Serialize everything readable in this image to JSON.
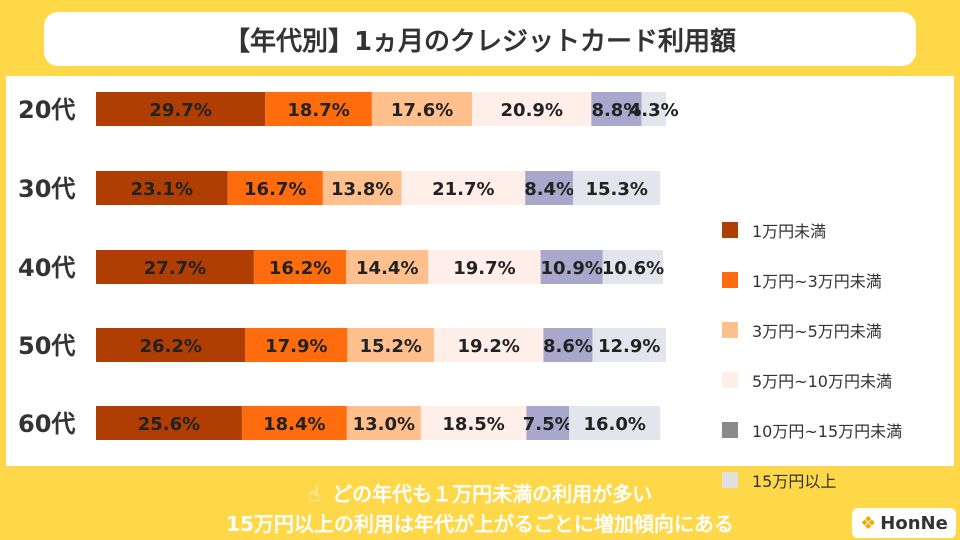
{
  "header": {
    "title": "【年代別】1ヵ月のクレジットカード利用額"
  },
  "chart_data": {
    "type": "bar",
    "orientation": "horizontal",
    "stacked": true,
    "categories": [
      "20代",
      "30代",
      "40代",
      "50代",
      "60代"
    ],
    "series": [
      {
        "name": "1万円未満",
        "values": [
          29.7,
          23.1,
          27.7,
          26.2,
          25.6
        ]
      },
      {
        "name": "1万円~3万円未満",
        "values": [
          18.7,
          16.7,
          16.2,
          17.9,
          18.4
        ]
      },
      {
        "name": "3万円~5万円未満",
        "values": [
          17.6,
          13.8,
          14.4,
          15.2,
          13.0
        ]
      },
      {
        "name": "5万円~10万円未満",
        "values": [
          20.9,
          21.7,
          19.7,
          19.2,
          18.5
        ]
      },
      {
        "name": "10万円~15万円未満",
        "values": [
          8.8,
          8.4,
          10.9,
          8.6,
          7.5
        ]
      },
      {
        "name": "15万円以上",
        "values": [
          4.3,
          15.3,
          10.6,
          12.9,
          16.0
        ]
      }
    ],
    "colors": [
      "#B03E03",
      "#FF6C0D",
      "#FFC08E",
      "#FFEFE8",
      "#A9A7CC",
      "#E3E4EC"
    ],
    "value_suffix": "%",
    "xlim": [
      0,
      100
    ],
    "legend": "right"
  },
  "legend_items": [
    {
      "label": "1万円未満",
      "color": "#B03E03"
    },
    {
      "label": "1万円~3万円未満",
      "color": "#FF6C0D"
    },
    {
      "label": "3万円~5万円未満",
      "color": "#FFC08E"
    },
    {
      "label": "5万円~10万円未満",
      "color": "#FFEFE8"
    },
    {
      "label": "10万円~15万円未満",
      "color": "#8A8A8A"
    },
    {
      "label": "15万円以上",
      "color": "#E0E0E0"
    }
  ],
  "footer": {
    "pointer_icon": "☝",
    "line1": "どの年代も１万円未満の利用が多い",
    "line2": "15万円以上の利用は年代が上がるごとに増加傾向にある"
  },
  "logo": {
    "text": "HonNe",
    "mark": "❖",
    "mark_color": "#F5A800"
  }
}
